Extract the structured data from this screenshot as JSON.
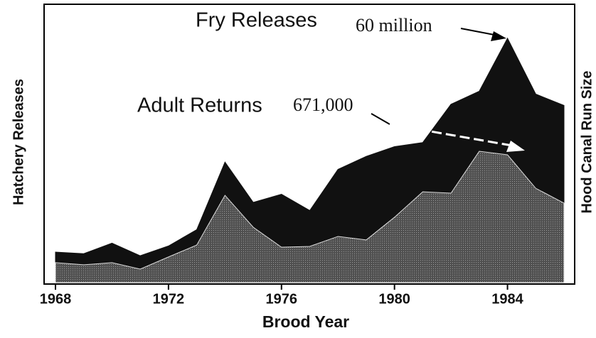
{
  "chart_data": {
    "type": "area",
    "x": [
      1968,
      1969,
      1970,
      1971,
      1972,
      1973,
      1974,
      1975,
      1976,
      1977,
      1978,
      1979,
      1980,
      1981,
      1982,
      1983,
      1984,
      1985,
      1986
    ],
    "xlim": [
      1968,
      1986
    ],
    "xticks": [
      1968,
      1972,
      1976,
      1980,
      1984
    ],
    "ylim": [
      0,
      68
    ],
    "y2lim": [
      0,
      1415000
    ],
    "x_label": "Brood Year",
    "y_label": "Hatchery Releases",
    "y2_label": "Hood Canal Run Size",
    "series": [
      {
        "name": "Fry Releases",
        "color": "#111111",
        "values": [
          7.5,
          7.1,
          9.7,
          6.6,
          9.0,
          13.0,
          29.6,
          19.7,
          21.7,
          17.7,
          27.8,
          31.0,
          33.4,
          34.4,
          43.8,
          47.0,
          60,
          46.3,
          43.5
        ]
      },
      {
        "name": "Adult Returns",
        "color": "#505050",
        "axis": "y2",
        "values": [
          102000,
          91000,
          102000,
          69000,
          131000,
          192000,
          446000,
          283000,
          181000,
          185000,
          236000,
          218000,
          334000,
          464000,
          457000,
          671000,
          653000,
          482000,
          406000
        ]
      }
    ],
    "annotations": [
      "60 million",
      "671,000"
    ]
  }
}
